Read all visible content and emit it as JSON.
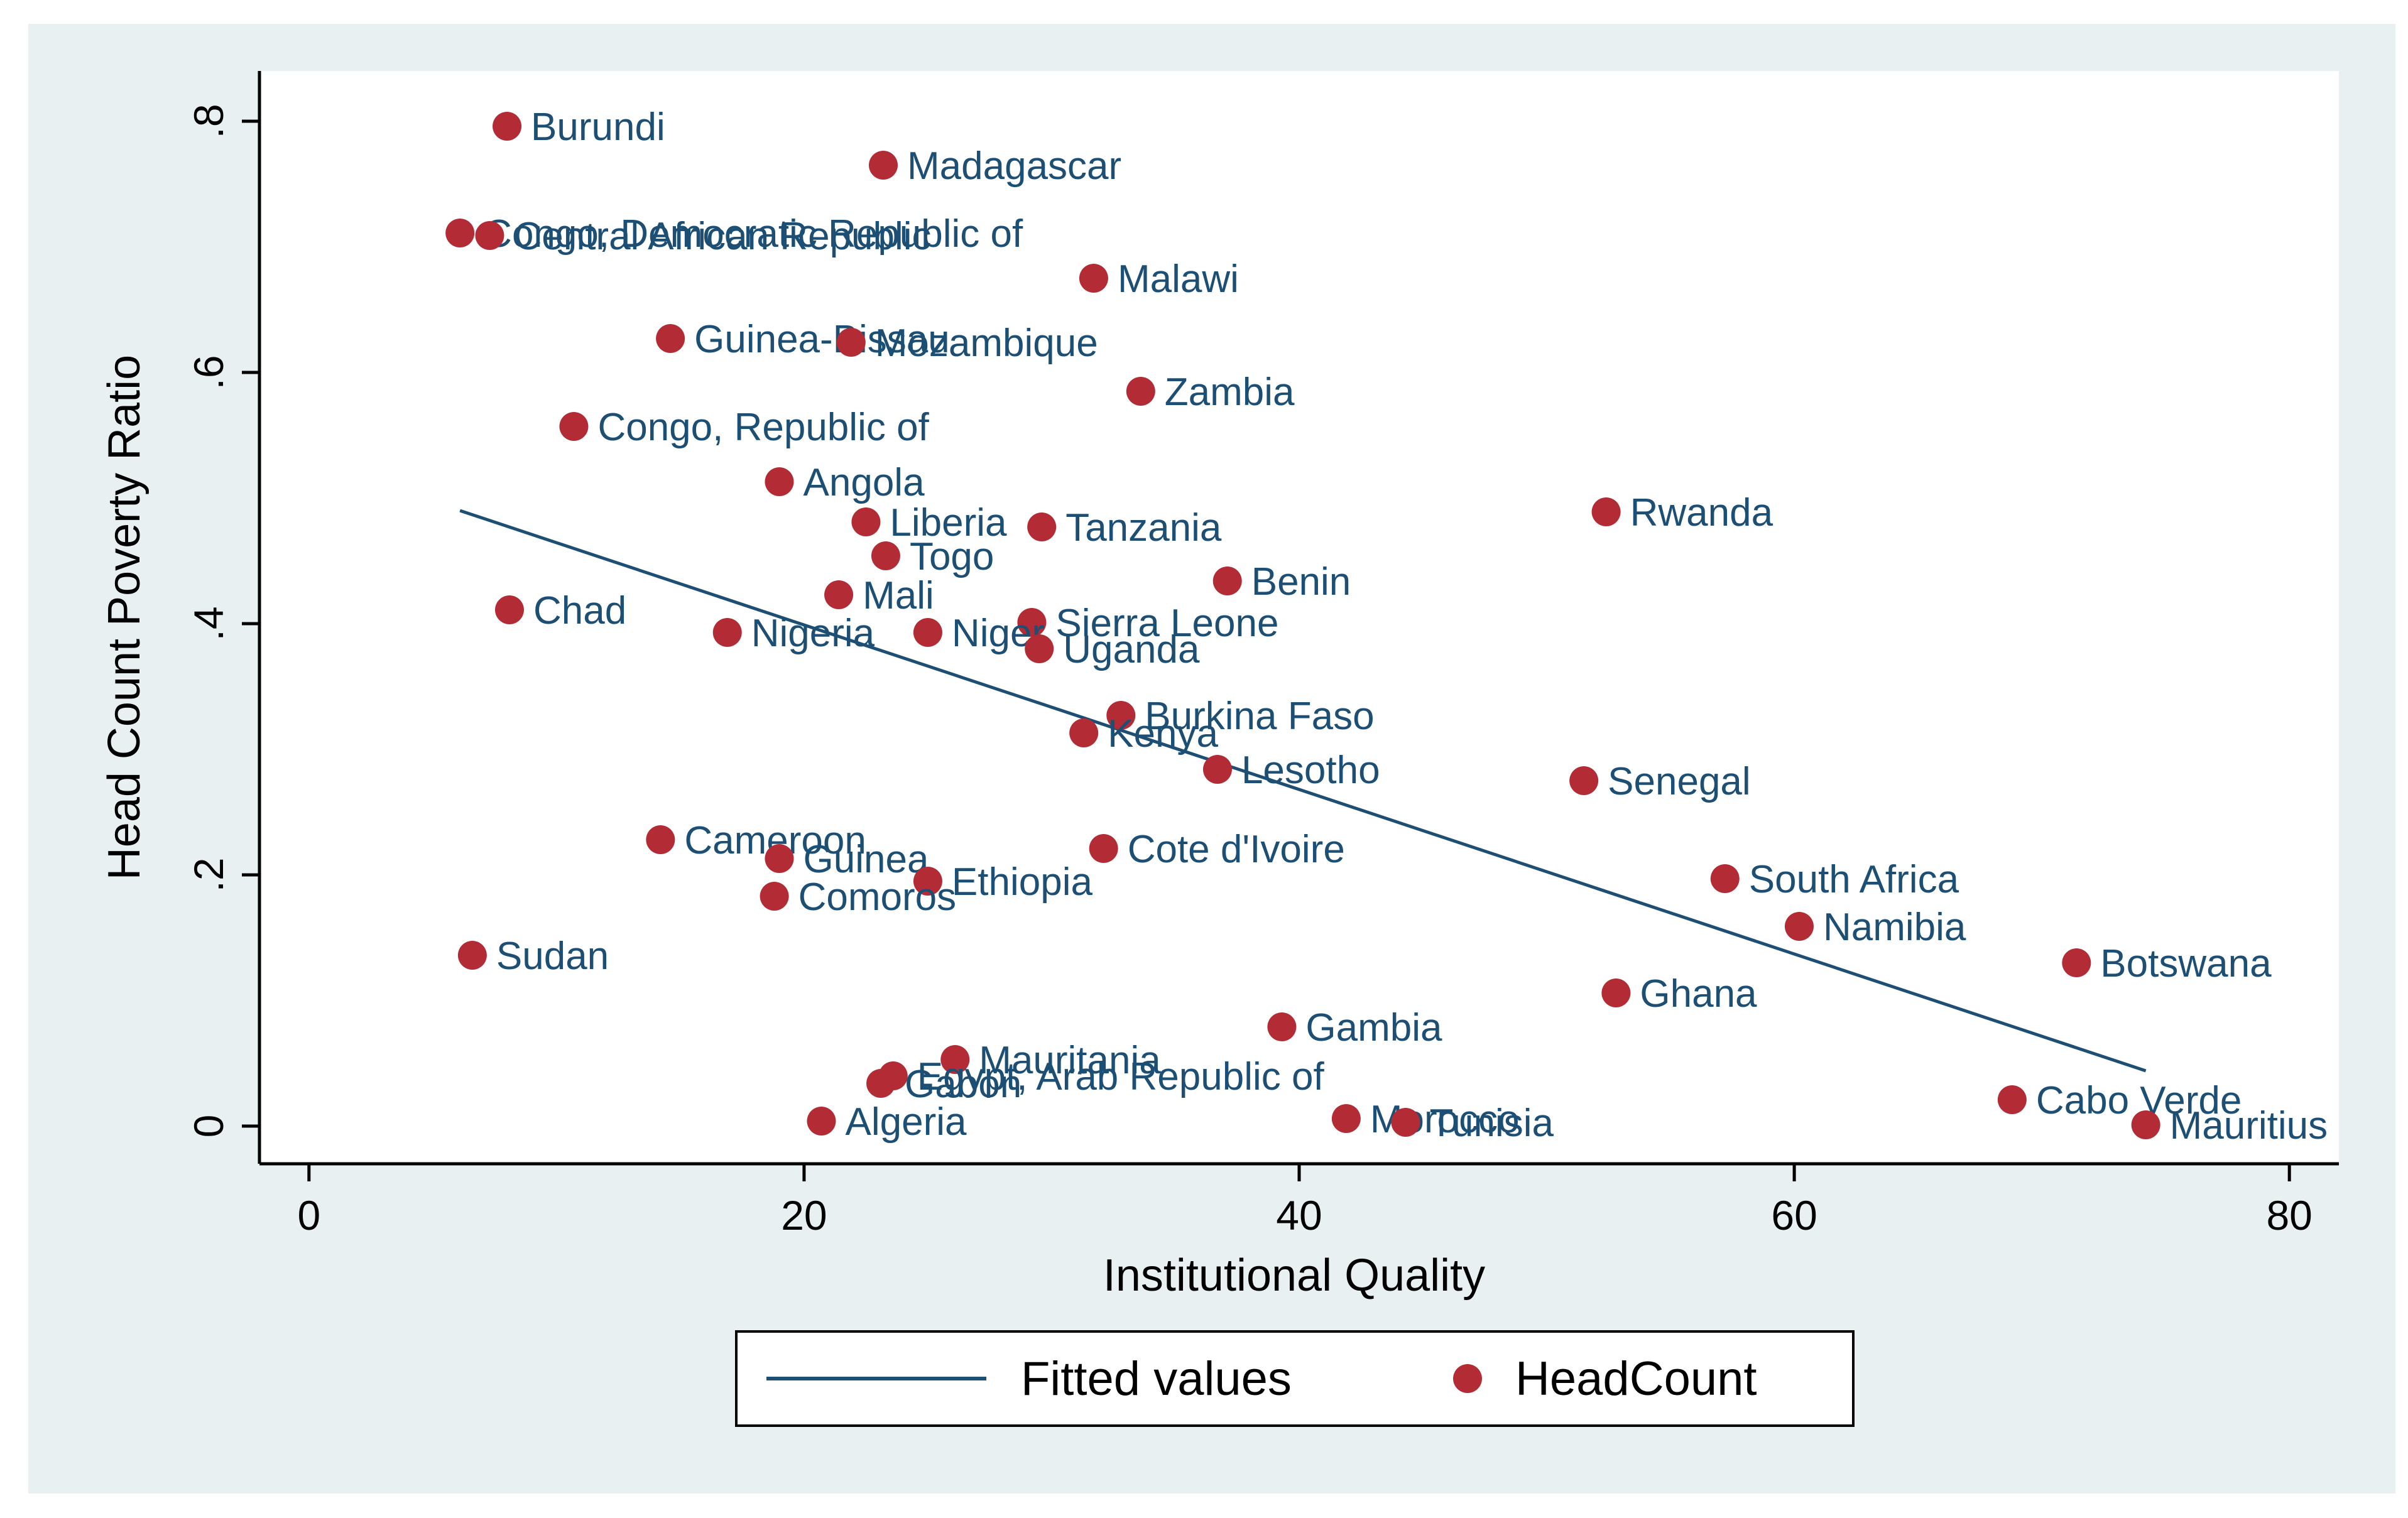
{
  "colors": {
    "outer_bg": "#e9f0f2",
    "plot_bg": "#ffffff",
    "marker": "#b22b35",
    "marker_label": "#1d4f74",
    "fit_line": "#1d4f74",
    "axis": "#000000"
  },
  "chart_data": {
    "type": "scatter",
    "title": "",
    "xlabel": "Institutional Quality",
    "ylabel": "Head Count Poverty Ratio",
    "xlim": [
      -2,
      82
    ],
    "ylim": [
      -0.03,
      0.84
    ],
    "xticks": [
      0,
      20,
      40,
      60,
      80
    ],
    "xtick_labels": [
      "0",
      "20",
      "40",
      "60",
      "80"
    ],
    "yticks": [
      0,
      0.2,
      0.4,
      0.6,
      0.8
    ],
    "ytick_labels": [
      "0",
      ".2",
      ".4",
      ".6",
      ".8"
    ],
    "grid": false,
    "legend": {
      "position": "bottom",
      "entries": [
        "Fitted values",
        "HeadCount"
      ]
    },
    "fitted_line": {
      "name": "Fitted values",
      "x": [
        6.1,
        74.2
      ],
      "y": [
        0.49,
        0.044
      ]
    },
    "series": [
      {
        "name": "HeadCount",
        "points": [
          {
            "label": "Burundi",
            "x": 8.0,
            "y": 0.796
          },
          {
            "label": "Madagascar",
            "x": 23.2,
            "y": 0.765
          },
          {
            "label": "Congo, Democratic Republic of",
            "x": 6.1,
            "y": 0.711
          },
          {
            "label": "Central African Republic",
            "x": 7.3,
            "y": 0.709
          },
          {
            "label": "Malawi",
            "x": 31.7,
            "y": 0.675
          },
          {
            "label": "Guinea-Bissau",
            "x": 14.6,
            "y": 0.627
          },
          {
            "label": "Mozambique",
            "x": 21.9,
            "y": 0.624
          },
          {
            "label": "Zambia",
            "x": 33.6,
            "y": 0.585
          },
          {
            "label": "Congo, Republic of",
            "x": 10.7,
            "y": 0.557
          },
          {
            "label": "Angola",
            "x": 19.0,
            "y": 0.513
          },
          {
            "label": "Rwanda",
            "x": 52.4,
            "y": 0.489
          },
          {
            "label": "Liberia",
            "x": 22.5,
            "y": 0.481
          },
          {
            "label": "Tanzania",
            "x": 29.6,
            "y": 0.477
          },
          {
            "label": "Togo",
            "x": 23.3,
            "y": 0.454
          },
          {
            "label": "Benin",
            "x": 37.1,
            "y": 0.434
          },
          {
            "label": "Mali",
            "x": 21.4,
            "y": 0.423
          },
          {
            "label": "Chad",
            "x": 8.1,
            "y": 0.411
          },
          {
            "label": "Sierra Leone",
            "x": 29.2,
            "y": 0.401
          },
          {
            "label": "Nigeria",
            "x": 16.9,
            "y": 0.393
          },
          {
            "label": "Niger",
            "x": 25.0,
            "y": 0.393
          },
          {
            "label": "Uganda",
            "x": 29.5,
            "y": 0.38
          },
          {
            "label": "Burkina Faso",
            "x": 32.8,
            "y": 0.327
          },
          {
            "label": "Kenya",
            "x": 31.3,
            "y": 0.313
          },
          {
            "label": "Lesotho",
            "x": 36.7,
            "y": 0.284
          },
          {
            "label": "Senegal",
            "x": 51.5,
            "y": 0.275
          },
          {
            "label": "Cameroon",
            "x": 14.2,
            "y": 0.228
          },
          {
            "label": "Cote d'Ivoire",
            "x": 32.1,
            "y": 0.221
          },
          {
            "label": "Guinea",
            "x": 19.0,
            "y": 0.213
          },
          {
            "label": "South Africa",
            "x": 57.2,
            "y": 0.197
          },
          {
            "label": "Ethiopia",
            "x": 25.0,
            "y": 0.195
          },
          {
            "label": "Comoros",
            "x": 18.8,
            "y": 0.183
          },
          {
            "label": "Namibia",
            "x": 60.2,
            "y": 0.159
          },
          {
            "label": "Sudan",
            "x": 6.6,
            "y": 0.136
          },
          {
            "label": "Botswana",
            "x": 71.4,
            "y": 0.13
          },
          {
            "label": "Ghana",
            "x": 52.8,
            "y": 0.106
          },
          {
            "label": "Gambia",
            "x": 39.3,
            "y": 0.079
          },
          {
            "label": "Mauritania",
            "x": 26.1,
            "y": 0.053
          },
          {
            "label": "Egypt, Arab Republic of",
            "x": 23.6,
            "y": 0.04
          },
          {
            "label": "Gabon",
            "x": 23.1,
            "y": 0.034
          },
          {
            "label": "Cabo Verde",
            "x": 68.8,
            "y": 0.021
          },
          {
            "label": "Morocco",
            "x": 41.9,
            "y": 0.006
          },
          {
            "label": "Algeria",
            "x": 20.7,
            "y": 0.004
          },
          {
            "label": "Tunisia",
            "x": 44.3,
            "y": 0.003
          },
          {
            "label": "Mauritius",
            "x": 74.2,
            "y": 0.001
          }
        ]
      }
    ]
  }
}
